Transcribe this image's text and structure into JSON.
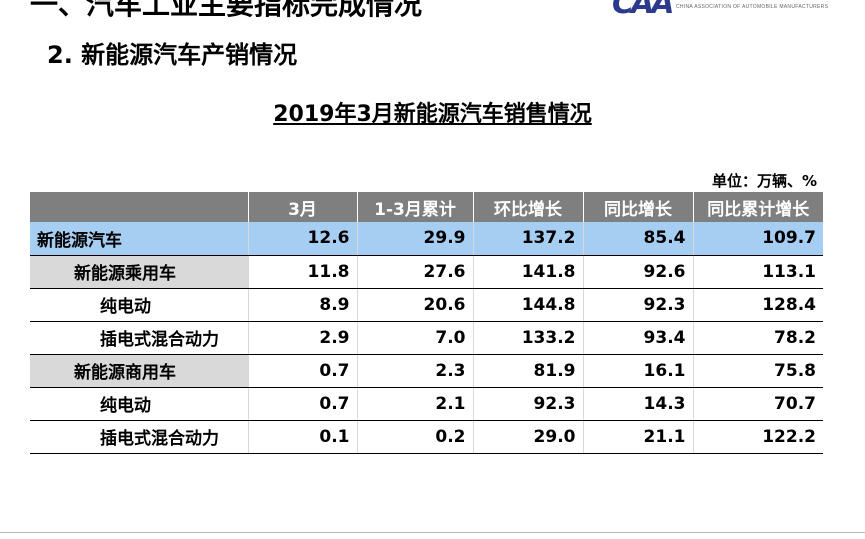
{
  "slide": {
    "top_heading": "一、汽车工业主要指标完成情况",
    "logo_mark": "CAA",
    "logo_assoc": "CHINA ASSOCIATION OF AUTOMOBILE MANUFACTURERS",
    "section_title": "2. 新能源汽车产销情况",
    "table_title": "2019年3月新能源汽车销售情况",
    "unit_note": "单位：万辆、%"
  },
  "table": {
    "columns": [
      "",
      "3月",
      "1-3月累计",
      "环比增长",
      "同比增长",
      "同比累计增长"
    ],
    "rows": [
      {
        "label": "新能源汽车",
        "values": [
          "12.6",
          "29.9",
          "137.2",
          "85.4",
          "109.7"
        ]
      },
      {
        "label": "新能源乘用车",
        "values": [
          "11.8",
          "27.6",
          "141.8",
          "92.6",
          "113.1"
        ]
      },
      {
        "label": "纯电动",
        "values": [
          "8.9",
          "20.6",
          "144.8",
          "92.3",
          "128.4"
        ]
      },
      {
        "label": "插电式混合动力",
        "values": [
          "2.9",
          "7.0",
          "133.2",
          "93.4",
          "78.2"
        ]
      },
      {
        "label": "新能源商用车",
        "values": [
          "0.7",
          "2.3",
          "81.9",
          "16.1",
          "75.8"
        ]
      },
      {
        "label": "纯电动",
        "values": [
          "0.7",
          "2.1",
          "92.3",
          "14.3",
          "70.7"
        ]
      },
      {
        "label": "插电式混合动力",
        "values": [
          "0.1",
          "0.2",
          "29.0",
          "21.1",
          "122.2"
        ]
      }
    ]
  },
  "colors": {
    "header_bg": "#7f7f7f",
    "highlight_row": "#a6cdf2",
    "subtotal_label": "#d9d9d9",
    "logo": "#2b3a8c"
  }
}
